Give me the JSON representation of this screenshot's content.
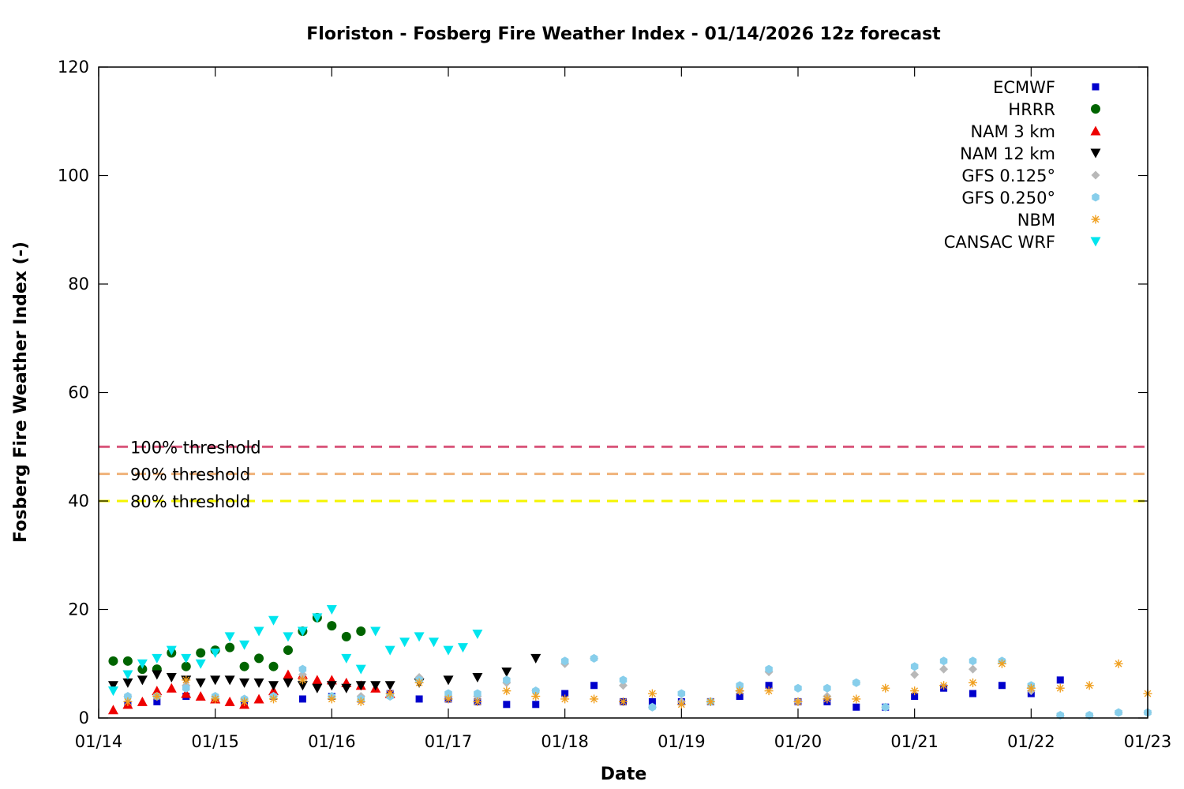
{
  "chart_data": {
    "type": "scatter",
    "title": "Floriston - Fosberg Fire Weather Index - 01/14/2026 12z forecast",
    "xlabel": "Date",
    "ylabel": "Fosberg Fire Weather Index (-)",
    "xlim": [
      "01/14",
      "01/23"
    ],
    "ylim": [
      0,
      120
    ],
    "x_ticks": [
      "01/14",
      "01/15",
      "01/16",
      "01/17",
      "01/18",
      "01/19",
      "01/20",
      "01/21",
      "01/22",
      "01/23"
    ],
    "y_ticks": [
      0,
      20,
      40,
      60,
      80,
      100,
      120
    ],
    "grid": false,
    "legend_position": "top-right",
    "thresholds": [
      {
        "label": "100% threshold",
        "value": 50,
        "color": "#d9557a"
      },
      {
        "label": "90% threshold",
        "value": 45,
        "color": "#f0b27a"
      },
      {
        "label": "80% threshold",
        "value": 40,
        "color": "#f5f500"
      }
    ],
    "series": [
      {
        "name": "ECMWF",
        "marker": "square",
        "color": "#0000cc",
        "x": [
          "01/14 06:00",
          "01/14 12:00",
          "01/14 18:00",
          "01/15 00:00",
          "01/15 06:00",
          "01/15 12:00",
          "01/15 18:00",
          "01/16 00:00",
          "01/16 06:00",
          "01/16 12:00",
          "01/16 18:00",
          "01/17 00:00",
          "01/17 06:00",
          "01/17 12:00",
          "01/17 18:00",
          "01/18 00:00",
          "01/18 06:00",
          "01/18 12:00",
          "01/18 18:00",
          "01/19 00:00",
          "01/19 06:00",
          "01/19 12:00",
          "01/19 18:00",
          "01/20 00:00",
          "01/20 06:00",
          "01/20 12:00",
          "01/20 18:00",
          "01/21 00:00",
          "01/21 06:00",
          "01/21 12:00",
          "01/21 18:00",
          "01/22 00:00",
          "01/22 06:00"
        ],
        "y": [
          2.5,
          3,
          4,
          3.5,
          3,
          4,
          3.5,
          4,
          3.5,
          4.5,
          3.5,
          3.5,
          3,
          2.5,
          2.5,
          4.5,
          6,
          3,
          3,
          3,
          3,
          4,
          6,
          3,
          3,
          2,
          2,
          4,
          5.5,
          4.5,
          6,
          4.5,
          7
        ]
      },
      {
        "name": "HRRR",
        "marker": "circle",
        "color": "#006400",
        "x": [
          "01/14 03:00",
          "01/14 06:00",
          "01/14 09:00",
          "01/14 12:00",
          "01/14 15:00",
          "01/14 18:00",
          "01/14 21:00",
          "01/15 00:00",
          "01/15 03:00",
          "01/15 06:00",
          "01/15 09:00",
          "01/15 12:00",
          "01/15 15:00",
          "01/15 18:00",
          "01/15 21:00",
          "01/16 00:00",
          "01/16 03:00",
          "01/16 06:00"
        ],
        "y": [
          10.5,
          10.5,
          9,
          9,
          12,
          9.5,
          12,
          12.5,
          13,
          9.5,
          11,
          9.5,
          12.5,
          16,
          18.5,
          17,
          15,
          16
        ]
      },
      {
        "name": "NAM 3 km",
        "marker": "triangle-up",
        "color": "#ee0000",
        "x": [
          "01/14 03:00",
          "01/14 06:00",
          "01/14 09:00",
          "01/14 12:00",
          "01/14 15:00",
          "01/14 18:00",
          "01/14 21:00",
          "01/15 00:00",
          "01/15 03:00",
          "01/15 06:00",
          "01/15 09:00",
          "01/15 12:00",
          "01/15 15:00",
          "01/15 18:00",
          "01/15 21:00",
          "01/16 00:00",
          "01/16 03:00",
          "01/16 06:00",
          "01/16 09:00",
          "01/16 12:00"
        ],
        "y": [
          1.5,
          2.5,
          3,
          5,
          5.5,
          4.5,
          4,
          3.5,
          3,
          2.5,
          3.5,
          5,
          8,
          8,
          7,
          7,
          6.5,
          6,
          5.5,
          4.5
        ]
      },
      {
        "name": "NAM 12 km",
        "marker": "triangle-down",
        "color": "#000000",
        "x": [
          "01/14 03:00",
          "01/14 06:00",
          "01/14 09:00",
          "01/14 12:00",
          "01/14 15:00",
          "01/14 18:00",
          "01/14 21:00",
          "01/15 00:00",
          "01/15 03:00",
          "01/15 06:00",
          "01/15 09:00",
          "01/15 12:00",
          "01/15 15:00",
          "01/15 18:00",
          "01/15 21:00",
          "01/16 00:00",
          "01/16 03:00",
          "01/16 06:00",
          "01/16 09:00",
          "01/16 12:00",
          "01/16 18:00",
          "01/17 00:00",
          "01/17 06:00",
          "01/17 12:00",
          "01/17 18:00"
        ],
        "y": [
          6,
          6.5,
          7,
          8,
          7.5,
          7,
          6.5,
          7,
          7,
          6.5,
          6.5,
          6,
          6.5,
          6,
          5.5,
          6,
          5.5,
          6,
          6,
          6,
          6.5,
          7,
          7.5,
          8.5,
          11
        ]
      },
      {
        "name": "GFS 0.125°",
        "marker": "diamond",
        "color": "#b8b8b8",
        "x": [
          "01/14 06:00",
          "01/14 12:00",
          "01/14 18:00",
          "01/15 00:00",
          "01/15 06:00",
          "01/15 12:00",
          "01/15 18:00",
          "01/16 00:00",
          "01/16 06:00",
          "01/16 12:00",
          "01/16 18:00",
          "01/17 00:00",
          "01/17 06:00",
          "01/17 12:00",
          "01/17 18:00",
          "01/18 00:00",
          "01/18 06:00",
          "01/18 12:00",
          "01/18 18:00",
          "01/19 00:00",
          "01/19 06:00",
          "01/19 12:00",
          "01/19 18:00",
          "01/20 00:00",
          "01/20 06:00",
          "01/20 12:00",
          "01/20 18:00",
          "01/21 00:00",
          "01/21 06:00",
          "01/21 12:00",
          "01/21 18:00",
          "01/22 00:00",
          "01/22 06:00",
          "01/22 12:00",
          "01/22 18:00",
          "01/23 00:00"
        ],
        "y": [
          4,
          4,
          6,
          4,
          3.5,
          4,
          8,
          4,
          4,
          4,
          7.5,
          4,
          4,
          6.5,
          5,
          10,
          11,
          6,
          2,
          3,
          3,
          5,
          8.5,
          3,
          4,
          6.5,
          2,
          8,
          9,
          9,
          10.5,
          5,
          0.5,
          0.5,
          1,
          1
        ]
      },
      {
        "name": "GFS 0.250°",
        "marker": "hexagon",
        "color": "#87ceeb",
        "x": [
          "01/14 06:00",
          "01/14 12:00",
          "01/14 18:00",
          "01/15 00:00",
          "01/15 06:00",
          "01/15 12:00",
          "01/15 18:00",
          "01/16 00:00",
          "01/16 06:00",
          "01/16 12:00",
          "01/16 18:00",
          "01/17 00:00",
          "01/17 06:00",
          "01/17 12:00",
          "01/17 18:00",
          "01/18 00:00",
          "01/18 06:00",
          "01/18 12:00",
          "01/18 18:00",
          "01/19 00:00",
          "01/19 06:00",
          "01/19 12:00",
          "01/19 18:00",
          "01/20 00:00",
          "01/20 06:00",
          "01/20 12:00",
          "01/20 18:00",
          "01/21 00:00",
          "01/21 06:00",
          "01/21 12:00",
          "01/21 18:00",
          "01/22 00:00",
          "01/22 06:00",
          "01/22 12:00",
          "01/22 18:00",
          "01/23 00:00"
        ],
        "y": [
          4,
          4,
          5.5,
          4,
          3.5,
          4,
          9,
          4,
          3.5,
          4,
          7,
          4.5,
          4.5,
          7,
          5,
          10.5,
          11,
          7,
          2,
          4.5,
          3,
          6,
          9,
          5.5,
          5.5,
          6.5,
          2,
          9.5,
          10.5,
          10.5,
          10.5,
          6,
          0.5,
          0.5,
          1,
          1
        ]
      },
      {
        "name": "NBM",
        "marker": "asterisk",
        "color": "#f0a020",
        "x": [
          "01/14 06:00",
          "01/14 12:00",
          "01/14 18:00",
          "01/15 00:00",
          "01/15 06:00",
          "01/15 12:00",
          "01/15 18:00",
          "01/16 00:00",
          "01/16 06:00",
          "01/16 12:00",
          "01/16 18:00",
          "01/17 00:00",
          "01/17 06:00",
          "01/17 12:00",
          "01/17 18:00",
          "01/18 00:00",
          "01/18 06:00",
          "01/18 12:00",
          "01/18 18:00",
          "01/19 00:00",
          "01/19 06:00",
          "01/19 12:00",
          "01/19 18:00",
          "01/20 00:00",
          "01/20 06:00",
          "01/20 12:00",
          "01/20 18:00",
          "01/21 00:00",
          "01/21 06:00",
          "01/21 12:00",
          "01/21 18:00",
          "01/22 00:00",
          "01/22 06:00",
          "01/22 12:00",
          "01/22 18:00",
          "01/23 00:00"
        ],
        "y": [
          3,
          4,
          7,
          3.5,
          3,
          3.5,
          7,
          3.5,
          3,
          4.5,
          6.5,
          3.5,
          3,
          5,
          4,
          3.5,
          3.5,
          3,
          4.5,
          2.5,
          3,
          5,
          5,
          3,
          3.5,
          3.5,
          5.5,
          5,
          6,
          6.5,
          10,
          5.5,
          5.5,
          6,
          10,
          4.5
        ]
      },
      {
        "name": "CANSAC WRF",
        "marker": "triangle-down",
        "color": "#00e5ee",
        "x": [
          "01/14 03:00",
          "01/14 06:00",
          "01/14 09:00",
          "01/14 12:00",
          "01/14 15:00",
          "01/14 18:00",
          "01/14 21:00",
          "01/15 00:00",
          "01/15 03:00",
          "01/15 06:00",
          "01/15 09:00",
          "01/15 12:00",
          "01/15 15:00",
          "01/15 18:00",
          "01/15 21:00",
          "01/16 00:00",
          "01/16 03:00",
          "01/16 06:00",
          "01/16 09:00",
          "01/16 12:00",
          "01/16 15:00",
          "01/16 18:00",
          "01/16 21:00",
          "01/17 00:00",
          "01/17 03:00",
          "01/17 06:00"
        ],
        "y": [
          5,
          8,
          10,
          11,
          12.5,
          11,
          10,
          12,
          15,
          13.5,
          16,
          18,
          15,
          16,
          18.5,
          20,
          11,
          9,
          16,
          12.5,
          14,
          15,
          14,
          12.5,
          13,
          15.5
        ]
      }
    ]
  }
}
